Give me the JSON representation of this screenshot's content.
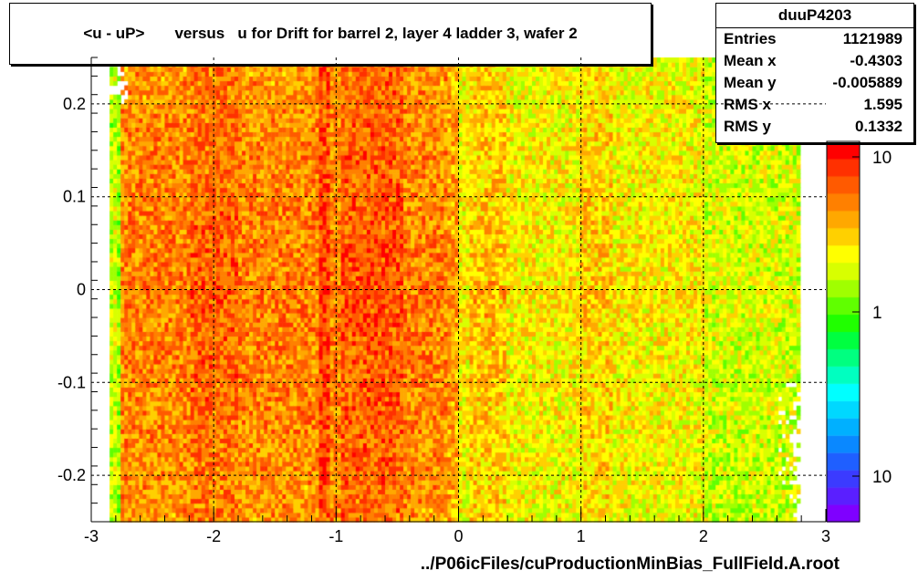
{
  "chart_data": {
    "type": "heatmap",
    "title": "<u - uP>       versus   u for Drift for barrel 2, layer 4 ladder 3, wafer 2",
    "xlabel": "../P06icFiles/cuProductionMinBias_FullField.A.root",
    "ylabel": "",
    "xlim": [
      -3,
      3
    ],
    "ylim": [
      -0.25,
      0.25
    ],
    "x_ticks": [
      "-3",
      "-2",
      "-1",
      "0",
      "1",
      "2",
      "3"
    ],
    "y_ticks": [
      "-0.2",
      "-0.1",
      "0",
      "0.1",
      "0.2"
    ],
    "colorbar_ticks": [
      "10",
      "1",
      "10"
    ],
    "z_scale": "log",
    "grid": true,
    "description_bands": [
      {
        "x_from": -2.85,
        "x_to": -1.0,
        "level": "high"
      },
      {
        "x_from": -1.0,
        "x_to": 0.0,
        "level": "high"
      },
      {
        "x_from": 0.0,
        "x_to": 2.8,
        "level": "medium"
      }
    ],
    "stats": {
      "name": "duuP4203",
      "rows": [
        {
          "label": "Entries",
          "value": "1121989"
        },
        {
          "label": "Mean x",
          "value": "-0.4303"
        },
        {
          "label": "Mean y",
          "value": "-0.005889"
        },
        {
          "label": "RMS x",
          "value": "1.595"
        },
        {
          "label": "RMS y",
          "value": "0.1332"
        }
      ]
    }
  }
}
